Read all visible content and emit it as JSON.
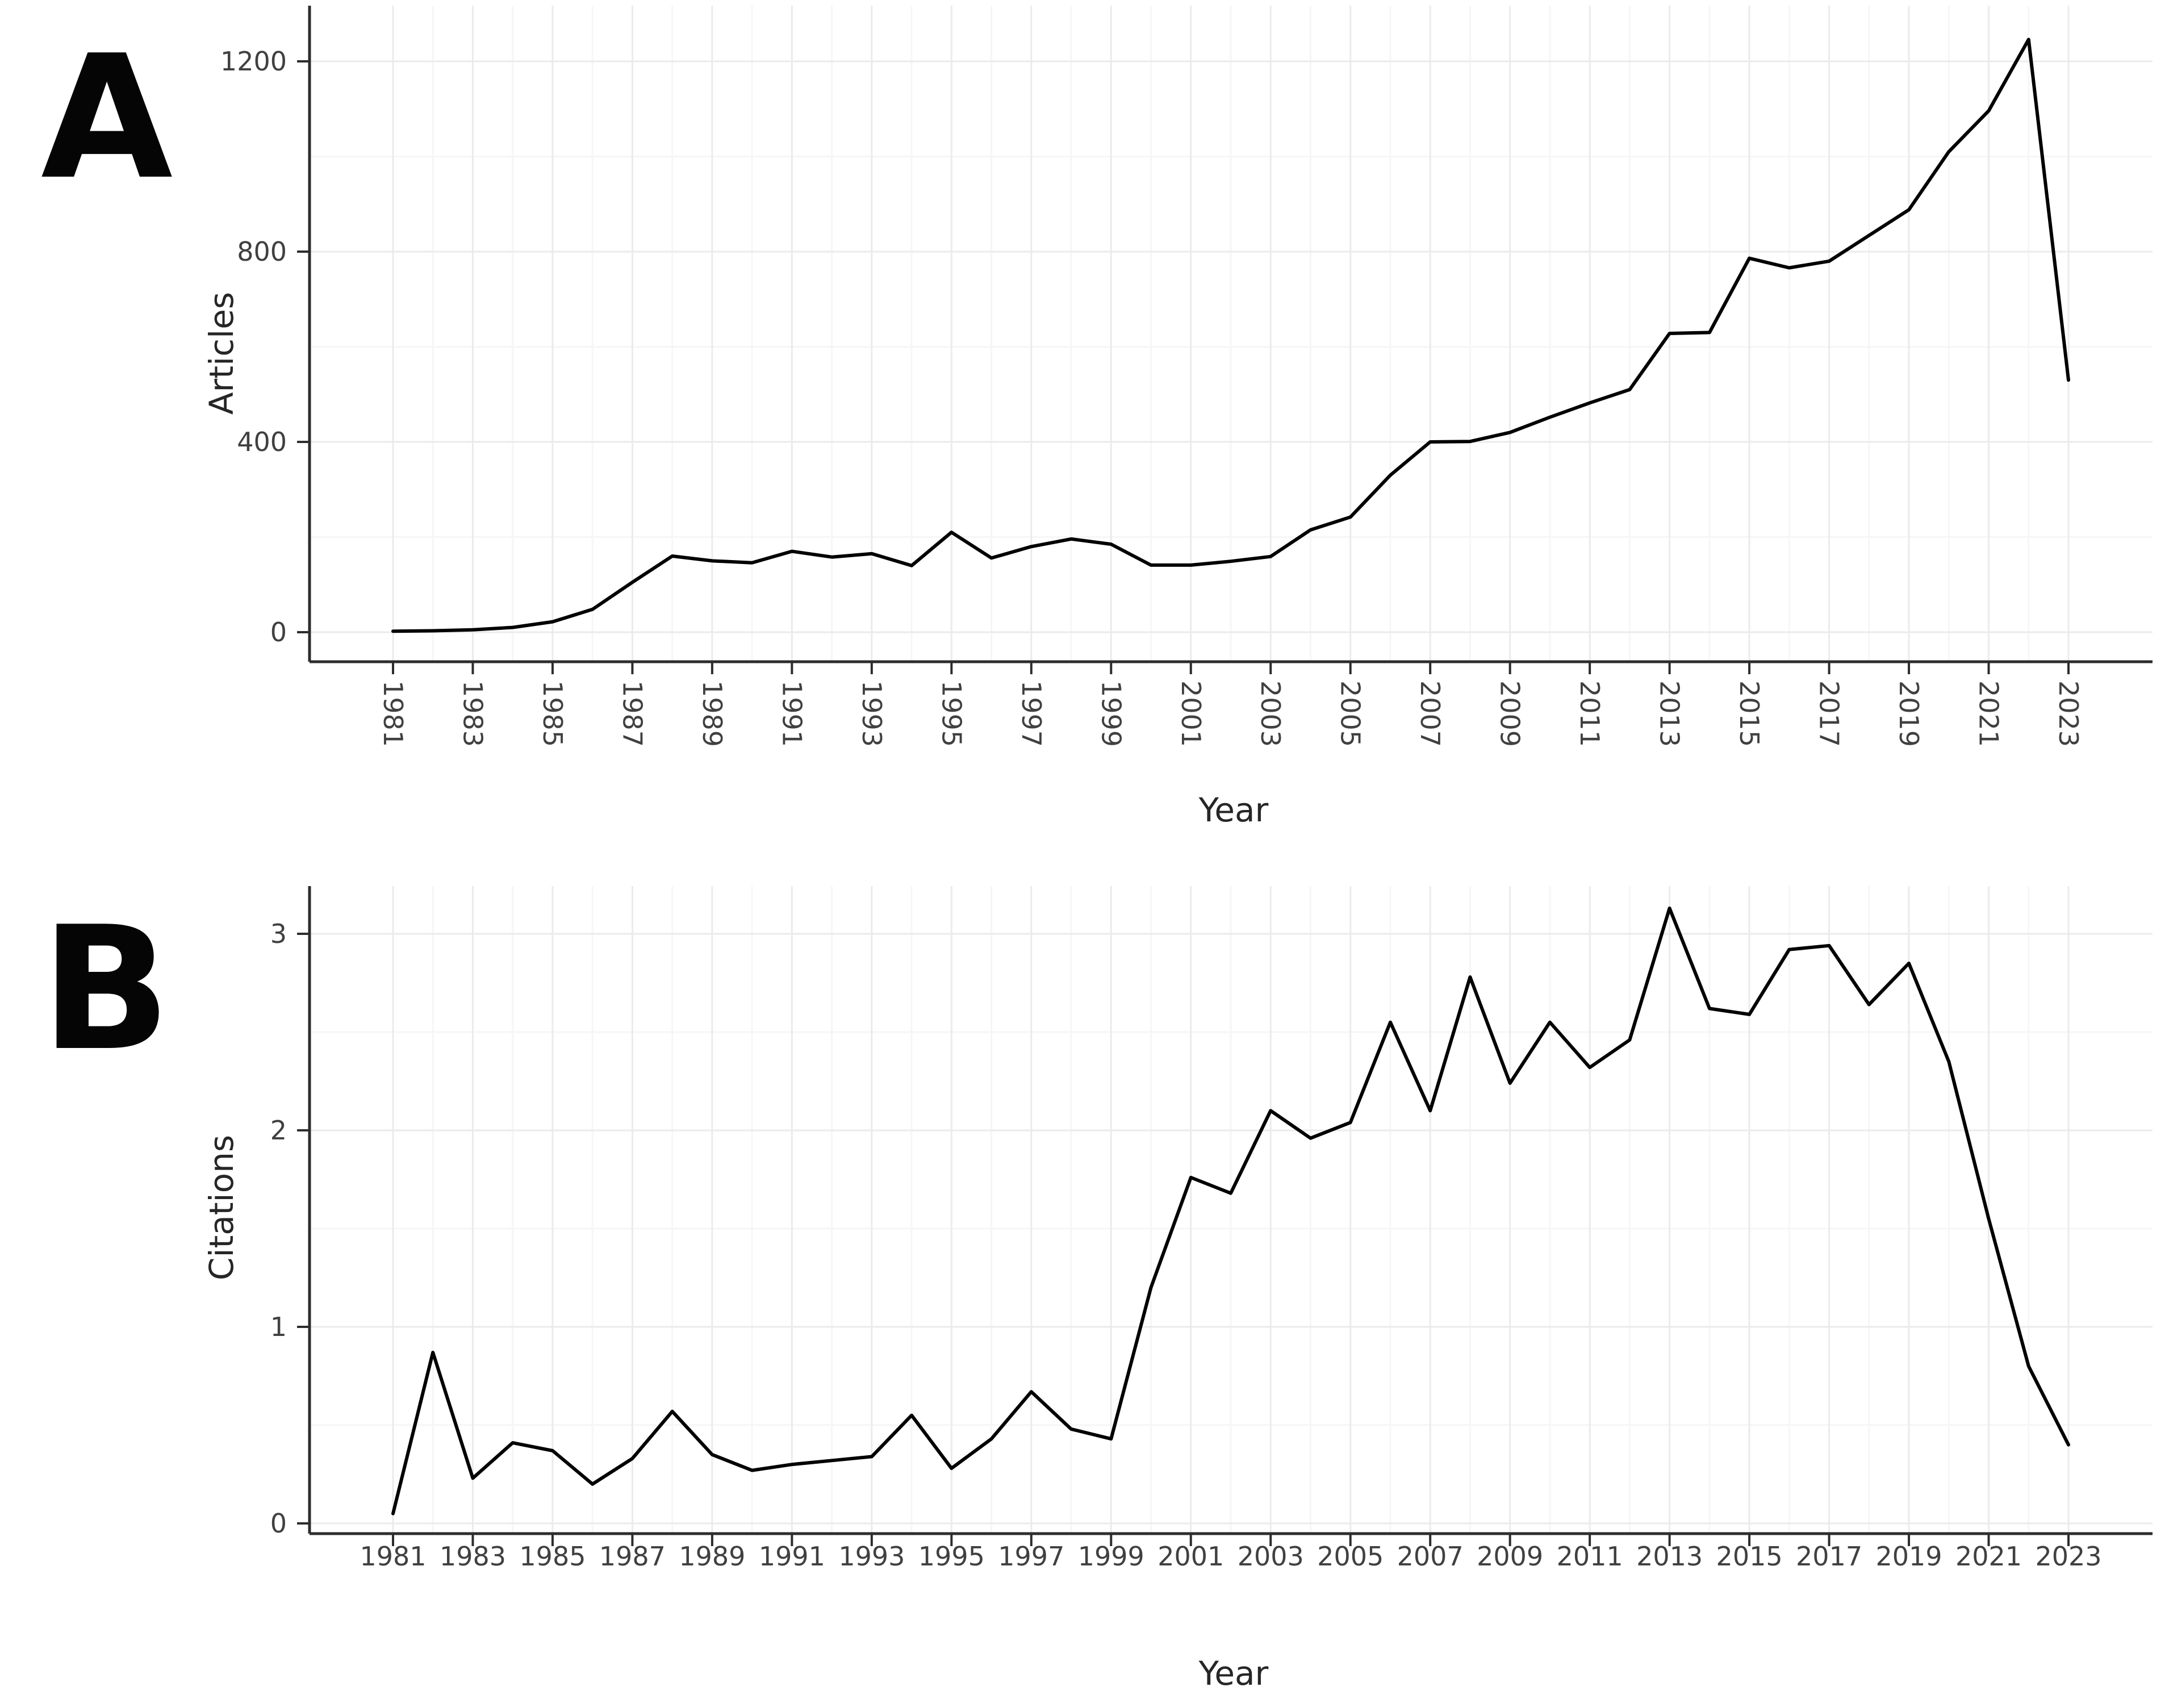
{
  "figure": {
    "type": "two-panel line chart",
    "background": "#ffffff"
  },
  "colors": {
    "line": "#000000",
    "grid_major": "#ebebeb",
    "grid_minor": "#f6f6f6",
    "axis": "#2d2d2d",
    "tick_text": "#404040",
    "title_text": "#262626",
    "panel_letter": "#050505"
  },
  "chart_data": [
    {
      "type": "line",
      "panel_label": "A",
      "title": "",
      "xlabel": "Year",
      "ylabel": "Articles",
      "legend": "none",
      "grid": "on",
      "xlim": [
        1979,
        2025
      ],
      "ylim": [
        0,
        1250
      ],
      "x_ticks": [
        1981,
        1983,
        1985,
        1987,
        1989,
        1991,
        1993,
        1995,
        1997,
        1999,
        2001,
        2003,
        2005,
        2007,
        2009,
        2011,
        2013,
        2015,
        2017,
        2019,
        2021,
        2023
      ],
      "x_tick_labels": [
        "1981",
        "1983",
        "1985",
        "1987",
        "1989",
        "1991",
        "1993",
        "1995",
        "1997",
        "1999",
        "2001",
        "2003",
        "2005",
        "2007",
        "2009",
        "2011",
        "2013",
        "2015",
        "2017",
        "2019",
        "2021",
        "2023"
      ],
      "y_ticks": [
        0,
        400,
        800,
        1200
      ],
      "y_tick_labels": [
        "0",
        "400",
        "800",
        "1200"
      ],
      "x": [
        1981,
        1982,
        1983,
        1984,
        1985,
        1986,
        1987,
        1988,
        1989,
        1990,
        1991,
        1992,
        1993,
        1994,
        1995,
        1996,
        1997,
        1998,
        1999,
        2000,
        2001,
        2002,
        2003,
        2004,
        2005,
        2006,
        2007,
        2008,
        2009,
        2010,
        2011,
        2012,
        2013,
        2014,
        2015,
        2016,
        2017,
        2018,
        2019,
        2020,
        2021,
        2022,
        2023
      ],
      "values": [
        2,
        3,
        5,
        10,
        22,
        48,
        105,
        160,
        150,
        146,
        170,
        158,
        165,
        140,
        210,
        156,
        180,
        196,
        185,
        141,
        141,
        149,
        159,
        215,
        242,
        330,
        400,
        401,
        420,
        452,
        482,
        510,
        628,
        630,
        786,
        766,
        780,
        834,
        888,
        1010,
        1096,
        1246,
        530
      ]
    },
    {
      "type": "line",
      "panel_label": "B",
      "title": "",
      "xlabel": "Year",
      "ylabel": "Citations",
      "legend": "none",
      "grid": "on",
      "xlim": [
        1979,
        2025
      ],
      "ylim": [
        0,
        3.2
      ],
      "x_ticks": [
        1981,
        1983,
        1985,
        1987,
        1989,
        1991,
        1993,
        1995,
        1997,
        1999,
        2001,
        2003,
        2005,
        2007,
        2009,
        2011,
        2013,
        2015,
        2017,
        2019,
        2021,
        2023
      ],
      "x_tick_labels": [
        "1981",
        "1983",
        "1985",
        "1987",
        "1989",
        "1991",
        "1993",
        "1995",
        "1997",
        "1999",
        "2001",
        "2003",
        "2005",
        "2007",
        "2009",
        "2011",
        "2013",
        "2015",
        "2017",
        "2019",
        "2021",
        "2023"
      ],
      "y_ticks": [
        0,
        1,
        2,
        3
      ],
      "y_tick_labels": [
        "0",
        "1",
        "2",
        "3"
      ],
      "x": [
        1981,
        1982,
        1983,
        1984,
        1985,
        1986,
        1987,
        1988,
        1989,
        1990,
        1991,
        1992,
        1993,
        1994,
        1995,
        1996,
        1997,
        1998,
        1999,
        2000,
        2001,
        2002,
        2003,
        2004,
        2005,
        2006,
        2007,
        2008,
        2009,
        2010,
        2011,
        2012,
        2013,
        2014,
        2015,
        2016,
        2017,
        2018,
        2019,
        2020,
        2021,
        2022,
        2023
      ],
      "values": [
        0.05,
        0.87,
        0.23,
        0.41,
        0.37,
        0.2,
        0.33,
        0.57,
        0.35,
        0.27,
        0.3,
        0.32,
        0.34,
        0.55,
        0.28,
        0.43,
        0.67,
        0.48,
        0.43,
        1.2,
        1.76,
        1.68,
        2.1,
        1.96,
        2.04,
        2.55,
        2.1,
        2.78,
        2.24,
        2.55,
        2.32,
        2.46,
        3.13,
        2.62,
        2.59,
        2.92,
        2.94,
        2.64,
        2.85,
        2.35,
        1.55,
        0.8,
        0.4
      ]
    }
  ]
}
